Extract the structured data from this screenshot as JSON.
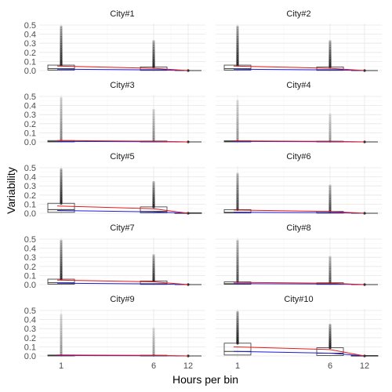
{
  "chart_data": {
    "type": "box",
    "xlabel": "Hours per bin",
    "ylabel": "Variability",
    "x_categories": [
      1,
      6,
      12
    ],
    "x_tick_labels": [
      "1",
      "6",
      "12"
    ],
    "ylim": [
      0,
      0.5
    ],
    "y_ticks": [
      0.0,
      0.1,
      0.2,
      0.3,
      0.4,
      0.5
    ],
    "y_tick_labels": [
      "0.0",
      "0.1",
      "0.2",
      "0.3",
      "0.4",
      "0.5"
    ],
    "grid": true,
    "line_colors": {
      "red": "#e41a1c",
      "blue": "#1f1fd6"
    },
    "panels": [
      {
        "title": "City#1",
        "boxes": [
          {
            "x": 1,
            "q1": 0.005,
            "median": 0.02,
            "q3": 0.06,
            "outlier_max": 0.48,
            "outlier_alpha": 0.75
          },
          {
            "x": 6,
            "q1": 0.002,
            "median": 0.01,
            "q3": 0.04,
            "outlier_max": 0.32,
            "outlier_alpha": 0.75
          },
          {
            "x": 12,
            "q1": 0.0,
            "median": 0.0,
            "q3": 0.0,
            "outlier_max": 0.0,
            "outlier_alpha": 0.75
          }
        ],
        "red_line": [
          0.05,
          0.025,
          0.0
        ],
        "blue_line": [
          0.015,
          0.008,
          0.0
        ]
      },
      {
        "title": "City#2",
        "boxes": [
          {
            "x": 1,
            "q1": 0.005,
            "median": 0.02,
            "q3": 0.06,
            "outlier_max": 0.48,
            "outlier_alpha": 0.75
          },
          {
            "x": 6,
            "q1": 0.002,
            "median": 0.01,
            "q3": 0.04,
            "outlier_max": 0.32,
            "outlier_alpha": 0.75
          },
          {
            "x": 12,
            "q1": 0.0,
            "median": 0.0,
            "q3": 0.0,
            "outlier_max": 0.0,
            "outlier_alpha": 0.75
          }
        ],
        "red_line": [
          0.05,
          0.025,
          0.0
        ],
        "blue_line": [
          0.015,
          0.008,
          0.0
        ]
      },
      {
        "title": "City#3",
        "boxes": [
          {
            "x": 1,
            "q1": 0.0,
            "median": 0.005,
            "q3": 0.015,
            "outlier_max": 0.48,
            "outlier_alpha": 0.35
          },
          {
            "x": 6,
            "q1": 0.0,
            "median": 0.003,
            "q3": 0.01,
            "outlier_max": 0.35,
            "outlier_alpha": 0.35
          },
          {
            "x": 12,
            "q1": 0.0,
            "median": 0.0,
            "q3": 0.0,
            "outlier_max": 0.0,
            "outlier_alpha": 0.35
          }
        ],
        "red_line": [
          0.015,
          0.008,
          0.0
        ],
        "blue_line": [
          0.005,
          0.003,
          0.0
        ]
      },
      {
        "title": "City#4",
        "boxes": [
          {
            "x": 1,
            "q1": 0.0,
            "median": 0.005,
            "q3": 0.012,
            "outlier_max": 0.45,
            "outlier_alpha": 0.3
          },
          {
            "x": 6,
            "q1": 0.0,
            "median": 0.003,
            "q3": 0.008,
            "outlier_max": 0.3,
            "outlier_alpha": 0.3
          },
          {
            "x": 12,
            "q1": 0.0,
            "median": 0.0,
            "q3": 0.0,
            "outlier_max": 0.0,
            "outlier_alpha": 0.3
          }
        ],
        "red_line": [
          0.012,
          0.006,
          0.0
        ],
        "blue_line": [
          0.005,
          0.003,
          0.0
        ]
      },
      {
        "title": "City#5",
        "boxes": [
          {
            "x": 1,
            "q1": 0.01,
            "median": 0.04,
            "q3": 0.11,
            "outlier_max": 0.48,
            "outlier_alpha": 0.75
          },
          {
            "x": 6,
            "q1": 0.005,
            "median": 0.02,
            "q3": 0.07,
            "outlier_max": 0.34,
            "outlier_alpha": 0.75
          },
          {
            "x": 12,
            "q1": 0.0,
            "median": 0.0,
            "q3": 0.005,
            "outlier_max": 0.0,
            "outlier_alpha": 0.75
          }
        ],
        "red_line": [
          0.08,
          0.05,
          0.0
        ],
        "blue_line": [
          0.03,
          0.015,
          0.0
        ]
      },
      {
        "title": "City#6",
        "boxes": [
          {
            "x": 1,
            "q1": 0.003,
            "median": 0.01,
            "q3": 0.04,
            "outlier_max": 0.43,
            "outlier_alpha": 0.6
          },
          {
            "x": 6,
            "q1": 0.001,
            "median": 0.006,
            "q3": 0.02,
            "outlier_max": 0.3,
            "outlier_alpha": 0.6
          },
          {
            "x": 12,
            "q1": 0.0,
            "median": 0.0,
            "q3": 0.0,
            "outlier_max": 0.0,
            "outlier_alpha": 0.6
          }
        ],
        "red_line": [
          0.035,
          0.02,
          0.0
        ],
        "blue_line": [
          0.01,
          0.006,
          0.0
        ]
      },
      {
        "title": "City#7",
        "boxes": [
          {
            "x": 1,
            "q1": 0.005,
            "median": 0.02,
            "q3": 0.06,
            "outlier_max": 0.48,
            "outlier_alpha": 0.7
          },
          {
            "x": 6,
            "q1": 0.002,
            "median": 0.01,
            "q3": 0.04,
            "outlier_max": 0.32,
            "outlier_alpha": 0.7
          },
          {
            "x": 12,
            "q1": 0.0,
            "median": 0.0,
            "q3": 0.0,
            "outlier_max": 0.0,
            "outlier_alpha": 0.7
          }
        ],
        "red_line": [
          0.05,
          0.03,
          0.0
        ],
        "blue_line": [
          0.015,
          0.008,
          0.0
        ]
      },
      {
        "title": "City#8",
        "boxes": [
          {
            "x": 1,
            "q1": 0.003,
            "median": 0.01,
            "q3": 0.03,
            "outlier_max": 0.48,
            "outlier_alpha": 0.55
          },
          {
            "x": 6,
            "q1": 0.002,
            "median": 0.006,
            "q3": 0.02,
            "outlier_max": 0.3,
            "outlier_alpha": 0.55
          },
          {
            "x": 12,
            "q1": 0.0,
            "median": 0.0,
            "q3": 0.0,
            "outlier_max": 0.0,
            "outlier_alpha": 0.55
          }
        ],
        "red_line": [
          0.025,
          0.015,
          0.0
        ],
        "blue_line": [
          0.01,
          0.006,
          0.0
        ]
      },
      {
        "title": "City#9",
        "boxes": [
          {
            "x": 1,
            "q1": 0.0,
            "median": 0.004,
            "q3": 0.01,
            "outlier_max": 0.45,
            "outlier_alpha": 0.3
          },
          {
            "x": 6,
            "q1": 0.0,
            "median": 0.002,
            "q3": 0.008,
            "outlier_max": 0.3,
            "outlier_alpha": 0.3
          },
          {
            "x": 12,
            "q1": 0.0,
            "median": 0.0,
            "q3": 0.0,
            "outlier_max": 0.0,
            "outlier_alpha": 0.3
          }
        ],
        "red_line": [
          0.01,
          0.006,
          0.0
        ],
        "blue_line": [
          0.004,
          0.002,
          0.0
        ]
      },
      {
        "title": "City#10",
        "boxes": [
          {
            "x": 1,
            "q1": 0.01,
            "median": 0.05,
            "q3": 0.14,
            "outlier_max": 0.48,
            "outlier_alpha": 0.8
          },
          {
            "x": 6,
            "q1": 0.005,
            "median": 0.03,
            "q3": 0.09,
            "outlier_max": 0.34,
            "outlier_alpha": 0.8
          },
          {
            "x": 12,
            "q1": 0.0,
            "median": 0.0,
            "q3": 0.005,
            "outlier_max": 0.0,
            "outlier_alpha": 0.8
          }
        ],
        "red_line": [
          0.1,
          0.07,
          0.0
        ],
        "blue_line": [
          0.05,
          0.03,
          0.0
        ]
      }
    ]
  }
}
